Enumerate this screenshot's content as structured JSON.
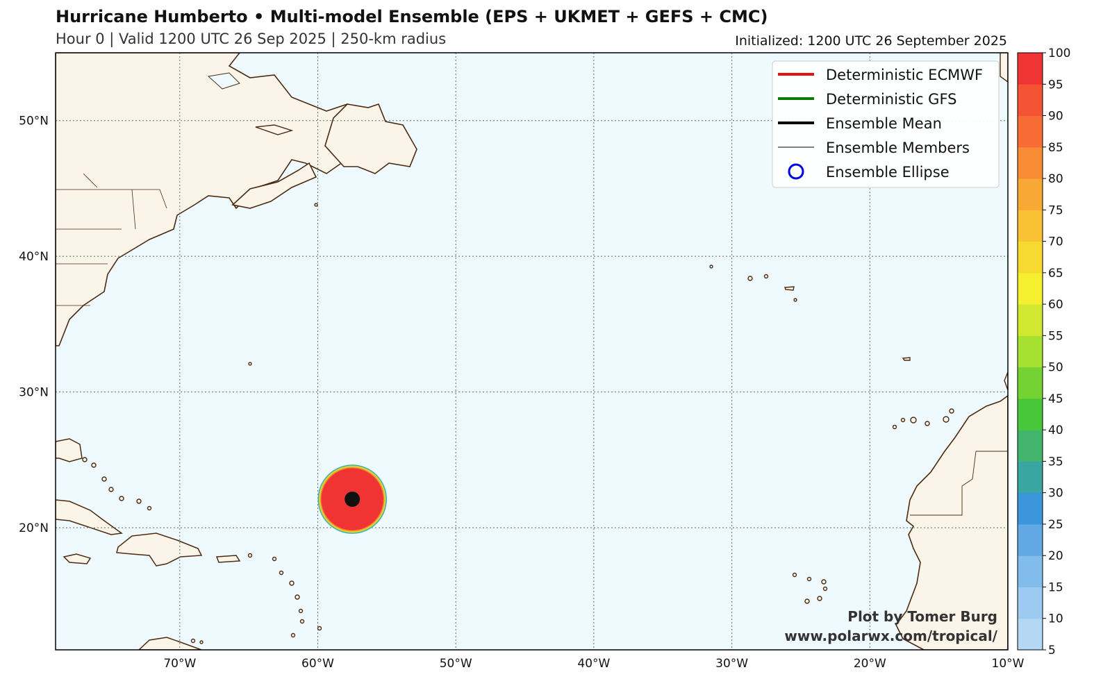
{
  "header": {
    "title": "Hurricane Humberto • Multi-model Ensemble (EPS + UKMET + GEFS + CMC)",
    "subtitle": "Hour 0 | Valid 1200 UTC 26 Sep 2025 | 250-km radius",
    "initialized": "Initialized: 1200 UTC 26 September 2025"
  },
  "map": {
    "lon_range": [
      -79,
      -10
    ],
    "lat_range": [
      11,
      55
    ],
    "lat_ticks": [
      {
        "value": 50,
        "label": "50°N"
      },
      {
        "value": 40,
        "label": "40°N"
      },
      {
        "value": 30,
        "label": "30°N"
      },
      {
        "value": 20,
        "label": "20°N"
      }
    ],
    "lon_ticks": [
      {
        "value": -70,
        "label": "70°W"
      },
      {
        "value": -60,
        "label": "60°W"
      },
      {
        "value": -50,
        "label": "50°W"
      },
      {
        "value": -40,
        "label": "40°W"
      },
      {
        "value": -30,
        "label": "30°W"
      },
      {
        "value": -20,
        "label": "20°W"
      },
      {
        "value": -10,
        "label": "10°W"
      }
    ],
    "ocean_color": "#eefaff",
    "land_color": "#fbf4e8",
    "coast_color": "#4a2a10",
    "grid": "dotted",
    "storm_center": {
      "lon": -57.5,
      "lat": 22.1
    }
  },
  "legend": {
    "placement": "top-right",
    "items": [
      {
        "label": "Deterministic ECMWF",
        "color": "#e81010"
      },
      {
        "label": "Deterministic GFS",
        "color": "#0a7a0a"
      },
      {
        "label": "Ensemble Mean",
        "color": "#000000"
      },
      {
        "label": "Ensemble Members",
        "color": "#000000"
      },
      {
        "label": "Ensemble Ellipse",
        "color": "#0000e0"
      }
    ]
  },
  "credit": {
    "line1": "Plot by Tomer Burg",
    "line2": "www.polarwx.com/tropical/"
  },
  "colorbar": {
    "labels": [
      "5",
      "10",
      "15",
      "20",
      "25",
      "30",
      "35",
      "40",
      "45",
      "50",
      "55",
      "60",
      "65",
      "70",
      "75",
      "80",
      "85",
      "90",
      "95",
      "100"
    ],
    "colors": [
      "#c8e4f8",
      "#b4d8f4",
      "#9ccaf0",
      "#82bcec",
      "#62a8e4",
      "#3c96dc",
      "#3aa6a4",
      "#42b46c",
      "#48c63a",
      "#74d232",
      "#a6e030",
      "#d2e830",
      "#f4f030",
      "#f6da30",
      "#f8c234",
      "#f8a834",
      "#f88c34",
      "#f66c34",
      "#f45434",
      "#f03434"
    ]
  }
}
